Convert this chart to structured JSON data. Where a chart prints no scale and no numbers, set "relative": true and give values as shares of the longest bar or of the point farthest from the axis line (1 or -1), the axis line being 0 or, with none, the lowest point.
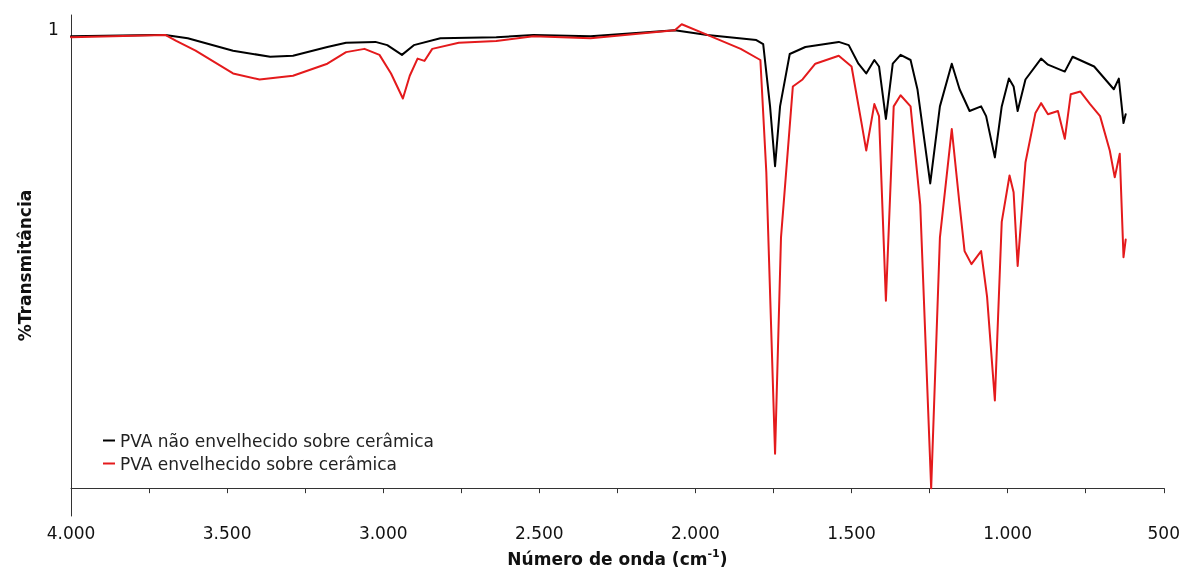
{
  "chart_data": {
    "type": "line",
    "relative": true,
    "xlabel": "Número de onda (cm$^{-1}$)",
    "ylabel": "%Transmitância",
    "xlim": [
      4000,
      500
    ],
    "xticks": [
      {
        "value": 4000,
        "label": "4.000"
      },
      {
        "value": 3750,
        "label": null
      },
      {
        "value": 3500,
        "label": "3.500"
      },
      {
        "value": 3250,
        "label": null
      },
      {
        "value": 3000,
        "label": "3.000"
      },
      {
        "value": 2750,
        "label": null
      },
      {
        "value": 2500,
        "label": "2.500"
      },
      {
        "value": 2250,
        "label": null
      },
      {
        "value": 2000,
        "label": "2.000"
      },
      {
        "value": 1750,
        "label": null
      },
      {
        "value": 1500,
        "label": "1.500"
      },
      {
        "value": 1250,
        "label": null
      },
      {
        "value": 1000,
        "label": "1.000"
      },
      {
        "value": 750,
        "label": null
      },
      500
    ],
    "annotations": [
      "1"
    ],
    "legend": "bottom left",
    "grid": false,
    "marker": "none",
    "line_style": "solid",
    "series": [
      {
        "name": "PVA não envelhecido sobre cerâmica",
        "color": "#000000",
        "x": [
          4000,
          3733,
          3698,
          3626,
          3481,
          3362,
          3289,
          3179,
          3119,
          3025,
          2987,
          2940,
          2902,
          2817,
          2638,
          2519,
          2336,
          2066,
          1962,
          1805,
          1783,
          1761,
          1745,
          1729,
          1698,
          1648,
          1541,
          1509,
          1478,
          1453,
          1427,
          1412,
          1390,
          1368,
          1343,
          1311,
          1289,
          1248,
          1217,
          1179,
          1154,
          1122,
          1085,
          1069,
          1041,
          1019,
          996,
          981,
          968,
          943,
          893,
          871,
          817,
          792,
          723,
          660,
          644,
          629,
          622
        ],
        "values": [
          0.974,
          0.977,
          0.977,
          0.97,
          0.943,
          0.93,
          0.932,
          0.951,
          0.96,
          0.962,
          0.955,
          0.934,
          0.955,
          0.97,
          0.972,
          0.977,
          0.974,
          0.987,
          0.977,
          0.966,
          0.957,
          0.823,
          0.694,
          0.823,
          0.936,
          0.951,
          0.962,
          0.955,
          0.915,
          0.894,
          0.923,
          0.909,
          0.796,
          0.915,
          0.934,
          0.923,
          0.86,
          0.657,
          0.823,
          0.915,
          0.86,
          0.813,
          0.823,
          0.802,
          0.713,
          0.823,
          0.883,
          0.866,
          0.813,
          0.881,
          0.926,
          0.913,
          0.898,
          0.93,
          0.909,
          0.86,
          0.883,
          0.787,
          0.806
        ]
      },
      {
        "name": "PVA envelhecido sobre cerâmica",
        "color": "#e41a1c",
        "x": [
          4000,
          3698,
          3663,
          3601,
          3481,
          3396,
          3289,
          3179,
          3119,
          3060,
          3012,
          2975,
          2937,
          2915,
          2890,
          2868,
          2843,
          2758,
          2638,
          2519,
          2336,
          2066,
          2044,
          1962,
          1855,
          1792,
          1773,
          1745,
          1726,
          1688,
          1657,
          1616,
          1541,
          1500,
          1468,
          1453,
          1427,
          1412,
          1390,
          1365,
          1343,
          1311,
          1280,
          1245,
          1217,
          1179,
          1154,
          1138,
          1116,
          1085,
          1066,
          1041,
          1019,
          994,
          981,
          968,
          943,
          911,
          893,
          871,
          839,
          817,
          798,
          767,
          736,
          704,
          673,
          657,
          641,
          629,
          622
        ],
        "values": [
          0.972,
          0.977,
          0.964,
          0.943,
          0.894,
          0.881,
          0.889,
          0.915,
          0.94,
          0.947,
          0.934,
          0.894,
          0.84,
          0.889,
          0.926,
          0.921,
          0.947,
          0.96,
          0.964,
          0.974,
          0.97,
          0.987,
          1,
          0.977,
          0.947,
          0.923,
          0.681,
          0.074,
          0.54,
          0.866,
          0.881,
          0.915,
          0.932,
          0.909,
          0.787,
          0.728,
          0.828,
          0.802,
          0.404,
          0.823,
          0.847,
          0.823,
          0.611,
          0,
          0.54,
          0.774,
          0.611,
          0.511,
          0.483,
          0.511,
          0.413,
          0.189,
          0.574,
          0.674,
          0.638,
          0.479,
          0.702,
          0.809,
          0.83,
          0.806,
          0.813,
          0.753,
          0.849,
          0.855,
          0.828,
          0.802,
          0.728,
          0.67,
          0.721,
          0.498,
          0.536
        ]
      }
    ]
  }
}
